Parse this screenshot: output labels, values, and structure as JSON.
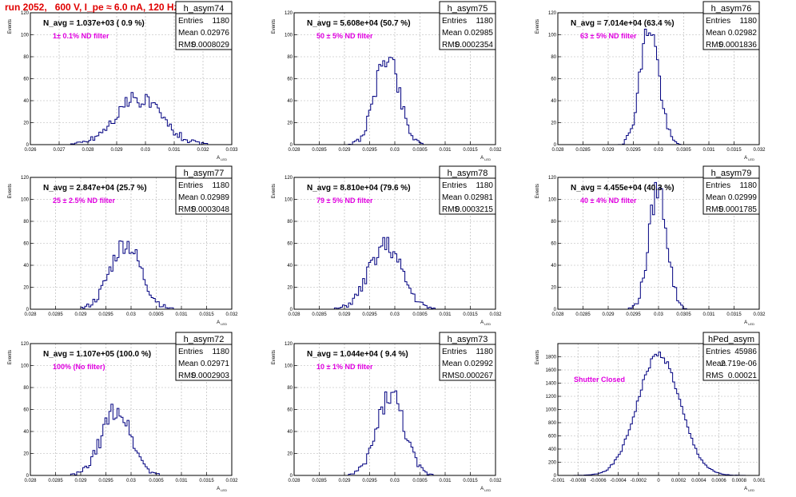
{
  "title": "run 2052,   600 V, I_pe ≈ 6.0 nA, 120 Hz",
  "colors": {
    "title": "#e00000",
    "hist": "#000080",
    "grid": "#b0b0b0",
    "filter_label": "#e000e0"
  },
  "axis_labels": {
    "y": "Events",
    "x": "A",
    "x_sub": "LED"
  },
  "chart_data": [
    {
      "type": "histogram",
      "name": "h_asym74",
      "navg": "N_avg = 1.037e+03 ( 0.9 %)",
      "filter": "1± 0.1% ND filter",
      "stats": [
        [
          "Entries",
          "1180"
        ],
        [
          "Mean",
          "0.02976"
        ],
        [
          "RMS",
          "0.0008029"
        ]
      ],
      "xlim": [
        0.026,
        0.033
      ],
      "ylim": [
        0,
        120
      ],
      "xticks": [
        "0.026",
        "0.027",
        "0.028",
        "0.029",
        "0.03",
        "0.031",
        "0.032",
        "0.033"
      ],
      "yticks": [
        "0",
        "20",
        "40",
        "60",
        "80",
        "100",
        "120"
      ],
      "mean": 0.02976,
      "sigma": 0.0008029,
      "peak": 42,
      "bins": 100,
      "seed": 74
    },
    {
      "type": "histogram",
      "name": "h_asym75",
      "navg": "N_avg = 5.608e+04 (50.7 %)",
      "filter": "50 ± 5% ND filter",
      "stats": [
        [
          "Entries",
          "1180"
        ],
        [
          "Mean",
          "0.02985"
        ],
        [
          "RMS",
          "0.0002354"
        ]
      ],
      "xlim": [
        0.028,
        0.032
      ],
      "ylim": [
        0,
        120
      ],
      "xticks": [
        "0.028",
        "0.0285",
        "0.029",
        "0.0295",
        "0.03",
        "0.0305",
        "0.031",
        "0.0315",
        "0.032"
      ],
      "yticks": [
        "0",
        "20",
        "40",
        "60",
        "80",
        "100",
        "120"
      ],
      "mean": 0.02985,
      "sigma": 0.0002354,
      "peak": 82,
      "bins": 100,
      "seed": 75
    },
    {
      "type": "histogram",
      "name": "h_asym76",
      "navg": "N_avg = 7.014e+04 (63.4 %)",
      "filter": "63 ± 5% ND filter",
      "stats": [
        [
          "Entries",
          "1180"
        ],
        [
          "Mean",
          "0.02982"
        ],
        [
          "RMS",
          "0.0001836"
        ]
      ],
      "xlim": [
        0.028,
        0.032
      ],
      "ylim": [
        0,
        120
      ],
      "xticks": [
        "0.028",
        "0.0285",
        "0.029",
        "0.0295",
        "0.03",
        "0.0305",
        "0.031",
        "0.0315",
        "0.032"
      ],
      "yticks": [
        "0",
        "20",
        "40",
        "60",
        "80",
        "100",
        "120"
      ],
      "mean": 0.02982,
      "sigma": 0.0001836,
      "peak": 108,
      "bins": 100,
      "seed": 76
    },
    {
      "type": "histogram",
      "name": "h_asym77",
      "navg": "N_avg = 2.847e+04 (25.7 %)",
      "filter": "25 ± 2.5% ND filter",
      "stats": [
        [
          "Entries",
          "1180"
        ],
        [
          "Mean",
          "0.02989"
        ],
        [
          "RMS",
          "0.0003048"
        ]
      ],
      "xlim": [
        0.028,
        0.032
      ],
      "ylim": [
        0,
        120
      ],
      "xticks": [
        "0.028",
        "0.0285",
        "0.029",
        "0.0295",
        "0.03",
        "0.0305",
        "0.031",
        "0.0315",
        "0.032"
      ],
      "yticks": [
        "0",
        "20",
        "40",
        "60",
        "80",
        "100",
        "120"
      ],
      "mean": 0.02989,
      "sigma": 0.0003048,
      "peak": 60,
      "bins": 100,
      "seed": 77
    },
    {
      "type": "histogram",
      "name": "h_asym78",
      "navg": "N_avg = 8.810e+04 (79.6 %)",
      "filter": "79 ± 5% ND filter",
      "stats": [
        [
          "Entries",
          "1180"
        ],
        [
          "Mean",
          "0.02981"
        ],
        [
          "RMS",
          "0.0003215"
        ]
      ],
      "xlim": [
        0.028,
        0.032
      ],
      "ylim": [
        0,
        120
      ],
      "xticks": [
        "0.028",
        "0.0285",
        "0.029",
        "0.0295",
        "0.03",
        "0.0305",
        "0.031",
        "0.0315",
        "0.032"
      ],
      "yticks": [
        "0",
        "20",
        "40",
        "60",
        "80",
        "100",
        "120"
      ],
      "mean": 0.02981,
      "sigma": 0.0003215,
      "peak": 58,
      "bins": 100,
      "seed": 78
    },
    {
      "type": "histogram",
      "name": "h_asym79",
      "navg": "N_avg = 4.455e+04 (40.3 %)",
      "filter": "40 ± 4% ND filter",
      "stats": [
        [
          "Entries",
          "1180"
        ],
        [
          "Mean",
          "0.02999"
        ],
        [
          "RMS",
          "0.0001785"
        ]
      ],
      "xlim": [
        0.028,
        0.032
      ],
      "ylim": [
        0,
        120
      ],
      "xticks": [
        "0.028",
        "0.0285",
        "0.029",
        "0.0295",
        "0.03",
        "0.0305",
        "0.031",
        "0.0315",
        "0.032"
      ],
      "yticks": [
        "0",
        "20",
        "40",
        "60",
        "80",
        "100",
        "120"
      ],
      "mean": 0.02999,
      "sigma": 0.0001785,
      "peak": 110,
      "bins": 100,
      "seed": 79
    },
    {
      "type": "histogram",
      "name": "h_asym72",
      "navg": "N_avg = 1.107e+05 (100.0 %)",
      "filter": "100% (No filter)",
      "stats": [
        [
          "Entries",
          "1180"
        ],
        [
          "Mean",
          "0.02971"
        ],
        [
          "RMS",
          "0.0002903"
        ]
      ],
      "xlim": [
        0.028,
        0.032
      ],
      "ylim": [
        0,
        120
      ],
      "xticks": [
        "0.028",
        "0.0285",
        "0.029",
        "0.0295",
        "0.03",
        "0.0305",
        "0.031",
        "0.0315",
        "0.032"
      ],
      "yticks": [
        "0",
        "20",
        "40",
        "60",
        "80",
        "100",
        "120"
      ],
      "mean": 0.02971,
      "sigma": 0.0002903,
      "peak": 60,
      "bins": 100,
      "seed": 72
    },
    {
      "type": "histogram",
      "name": "h_asym73",
      "navg": "N_avg = 1.044e+04 ( 9.4 %)",
      "filter": "10 ± 1% ND filter",
      "stats": [
        [
          "Entries",
          "1180"
        ],
        [
          "Mean",
          "0.02992"
        ],
        [
          "RMS",
          "0.000267"
        ]
      ],
      "xlim": [
        0.028,
        0.032
      ],
      "ylim": [
        0,
        120
      ],
      "xticks": [
        "0.028",
        "0.0285",
        "0.029",
        "0.0295",
        "0.03",
        "0.0305",
        "0.031",
        "0.0315",
        "0.032"
      ],
      "yticks": [
        "0",
        "20",
        "40",
        "60",
        "80",
        "100",
        "120"
      ],
      "mean": 0.02992,
      "sigma": 0.000267,
      "peak": 74,
      "bins": 100,
      "seed": 73
    },
    {
      "type": "histogram",
      "name": "hPed_asym",
      "navg": "",
      "filter": "Shutter Closed",
      "stats": [
        [
          "Entries",
          "45986"
        ],
        [
          "Mean",
          "2.719e-06"
        ],
        [
          "RMS",
          "0.00021"
        ]
      ],
      "xlim": [
        -0.001,
        0.001
      ],
      "ylim": [
        0,
        2000
      ],
      "xticks": [
        "-0.001",
        "-0.0008",
        "-0.0006",
        "-0.0004",
        "-0.0002",
        "0",
        "0.0002",
        "0.0004",
        "0.0006",
        "0.0008",
        "0.001"
      ],
      "yticks": [
        "0",
        "200",
        "400",
        "600",
        "800",
        "1000",
        "1200",
        "1400",
        "1600",
        "1800"
      ],
      "mean": 2.7e-06,
      "sigma": 0.00021,
      "peak": 1840,
      "bins": 100,
      "seed": 1
    }
  ]
}
